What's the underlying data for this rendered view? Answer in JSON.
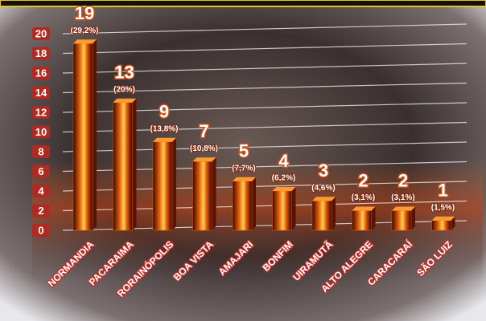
{
  "chart_data": {
    "type": "bar",
    "categories": [
      "NORMANDIA",
      "PACARAIMA",
      "RORAINÓPOLIS",
      "BOA VISTA",
      "AMAJARI",
      "BONFIM",
      "UIRAMUTÃ",
      "ALTO ALEGRE",
      "CARACARAÍ",
      "SÃO LUIZ"
    ],
    "values": [
      19,
      13,
      9,
      7,
      5,
      4,
      3,
      2,
      2,
      1
    ],
    "percent_labels": [
      "(29,2%)",
      "(20%)",
      "(13,8%)",
      "(10,8%)",
      "(7,7%)",
      "(6,2%)",
      "(4,6%)",
      "(3,1%)",
      "(3,1%)",
      "(1,5%)"
    ],
    "color": "#e8620c",
    "ylim": [
      0,
      20
    ],
    "yticks": [
      0,
      2,
      4,
      6,
      8,
      10,
      12,
      14,
      16,
      18,
      20
    ],
    "grid": true
  }
}
